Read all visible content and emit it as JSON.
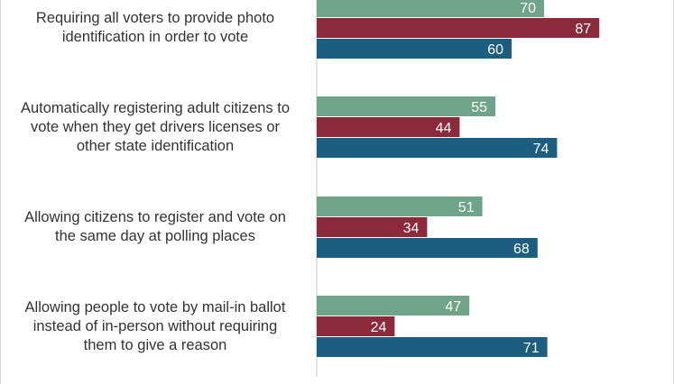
{
  "chart_data": {
    "type": "bar",
    "orientation": "horizontal",
    "categories": [
      [
        "Requiring all voters to provide photo",
        "identification in order to vote"
      ],
      [
        "Automatically registering adult citizens to",
        "vote when they get drivers licenses or",
        "other state identification"
      ],
      [
        "Allowing citizens to register and vote on",
        "the same day at polling places"
      ],
      [
        "Allowing people to vote by mail-in ballot",
        "instead of in-person without requiring",
        "them to give a reason"
      ]
    ],
    "series": [
      {
        "values": [
          70,
          55,
          51,
          47
        ],
        "color": "#6fa38a"
      },
      {
        "values": [
          87,
          44,
          34,
          24
        ],
        "color": "#8b2a3a"
      },
      {
        "values": [
          60,
          74,
          68,
          71
        ],
        "color": "#1b5e80"
      }
    ],
    "xlim": [
      0,
      100
    ],
    "grid": false,
    "data_labels": true
  }
}
